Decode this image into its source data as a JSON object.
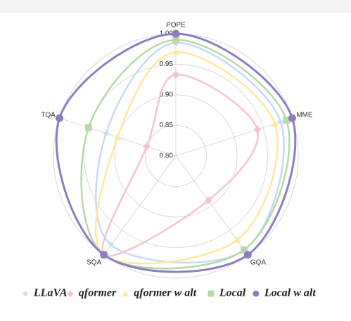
{
  "chart_data": {
    "type": "radar",
    "categories": [
      "POPE",
      "MME",
      "GQA",
      "SQA",
      "TQA"
    ],
    "rlim": [
      0.8,
      1.0
    ],
    "rticks": [
      {
        "value": 0.8,
        "label": "0.80"
      },
      {
        "value": 0.85,
        "label": "0.85"
      },
      {
        "value": 0.9,
        "label": "0.90"
      },
      {
        "value": 0.95,
        "label": "0.95"
      },
      {
        "value": 1.0,
        "label": "1.00"
      }
    ],
    "grid": true,
    "series": [
      {
        "name": "LLaVA",
        "color": "#c6d9f5",
        "marker": "star",
        "values": [
          0.985,
          0.98,
          0.99,
          0.98,
          0.92
        ]
      },
      {
        "name": "qformer",
        "color": "#f5c4c8",
        "marker": "diamond",
        "values": [
          0.933,
          0.94,
          0.89,
          1.0,
          0.85
        ]
      },
      {
        "name": "qformer w alt",
        "color": "#fde8a0",
        "marker": "triangle",
        "values": [
          0.97,
          0.97,
          0.97,
          1.0,
          0.9
        ]
      },
      {
        "name": "Local",
        "color": "#b6d9a6",
        "marker": "square",
        "values": [
          0.99,
          0.99,
          0.99,
          1.0,
          0.95
        ]
      },
      {
        "name": "Local w alt",
        "color": "#8e7cc3",
        "marker": "circle",
        "values": [
          1.0,
          1.0,
          1.0,
          1.0,
          1.0
        ]
      }
    ]
  }
}
